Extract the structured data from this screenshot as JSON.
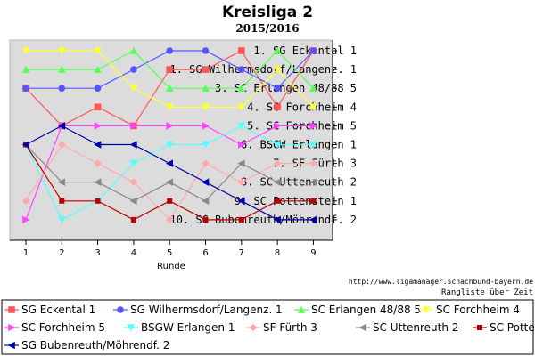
{
  "chart_data": {
    "type": "line",
    "title": "Kreisliga 2",
    "subtitle": "2015/2016",
    "xlabel": "Runde",
    "ylabel": "",
    "x": [
      1,
      2,
      3,
      4,
      5,
      6,
      7,
      8,
      9
    ],
    "ylim": [
      1,
      10
    ],
    "y_inverted": true,
    "grid": false,
    "legend_position": "bottom",
    "rank_labels": [
      "1. SG Eckental 1",
      "1. SG Wilhermsdorf/Langenz. 1",
      "3. SC Erlangen 48/88 5",
      "4. SC Forchheim 4",
      "5. SC Forchheim 5",
      "6. BSGW Erlangen 1",
      "7. SF Fürth 3",
      "8. SC Uttenreuth 2",
      "9. SC Pottenstein 1",
      "10. SG Bubenreuth/Möhrendf. 2"
    ],
    "series": [
      {
        "name": "SG Eckental 1",
        "color": "#ff5555",
        "marker": "square",
        "values": [
          3,
          5,
          4,
          5,
          2,
          2,
          1,
          4,
          1
        ]
      },
      {
        "name": "SG Wilhermsdorf/Langenz. 1",
        "color": "#5555ff",
        "marker": "circle",
        "values": [
          3,
          3,
          3,
          2,
          1,
          1,
          2,
          3,
          1
        ]
      },
      {
        "name": "SC Erlangen 48/88 5",
        "color": "#55ff55",
        "marker": "triangle-up",
        "values": [
          2,
          2,
          2,
          1,
          3,
          3,
          3,
          1,
          3
        ]
      },
      {
        "name": "SC Forchheim 4",
        "color": "#ffff33",
        "marker": "triangle-down",
        "values": [
          1,
          1,
          1,
          3,
          4,
          4,
          4,
          2,
          4
        ]
      },
      {
        "name": "SC Forchheim 5",
        "color": "#ff44ff",
        "marker": "triangle-right",
        "values": [
          10,
          5,
          5,
          5,
          5,
          5,
          6,
          5,
          5
        ]
      },
      {
        "name": "BSGW Erlangen 1",
        "color": "#55ffff",
        "marker": "triangle-down",
        "values": [
          6,
          10,
          9,
          7,
          6,
          6,
          5,
          6,
          6
        ]
      },
      {
        "name": "SF Fürth 3",
        "color": "#ffaaaa",
        "marker": "diamond",
        "values": [
          9,
          6,
          7,
          8,
          10,
          7,
          8,
          7,
          7
        ]
      },
      {
        "name": "SC Uttenreuth 2",
        "color": "#888888",
        "marker": "triangle-left",
        "values": [
          6,
          8,
          8,
          9,
          8,
          9,
          7,
          8,
          8
        ]
      },
      {
        "name": "SC Pottenstein 1",
        "color": "#bb0000",
        "marker": "square-small",
        "values": [
          6,
          9,
          9,
          10,
          9,
          10,
          10,
          9,
          9
        ]
      },
      {
        "name": "SG Bubenreuth/Möhrendf. 2",
        "color": "#0000aa",
        "marker": "triangle-left",
        "values": [
          6,
          5,
          6,
          6,
          7,
          8,
          9,
          10,
          10
        ]
      }
    ],
    "source_url": "http://www.ligamanager.schachbund-bayern.de",
    "caption": "Rangliste über Zeit"
  }
}
